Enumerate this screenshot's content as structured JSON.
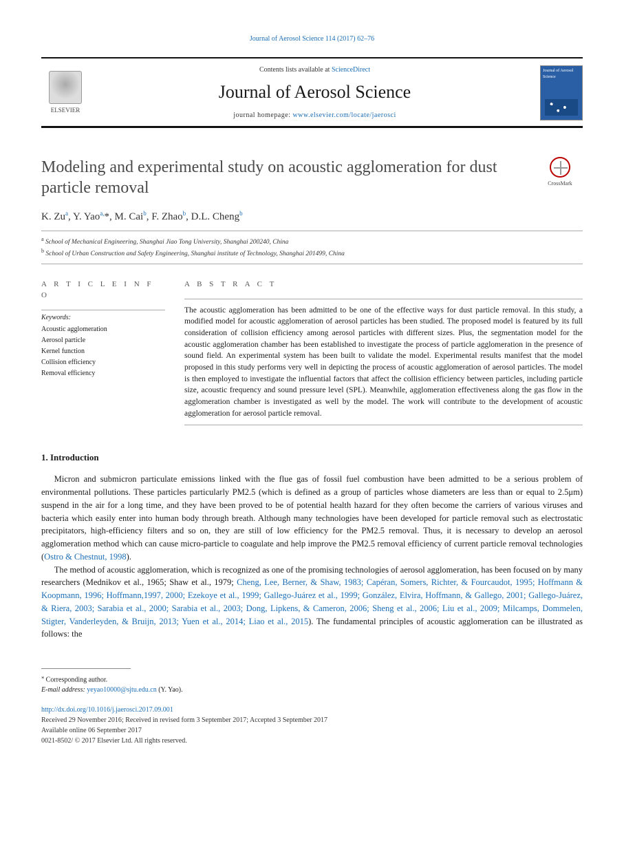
{
  "citation": "Journal of Aerosol Science 114 (2017) 62–76",
  "header": {
    "publisher": "ELSEVIER",
    "contents_prefix": "Contents lists available at ",
    "contents_link": "ScienceDirect",
    "journal_name": "Journal of Aerosol Science",
    "homepage_prefix": "journal homepage: ",
    "homepage_url": "www.elsevier.com/locate/jaerosci",
    "cover_text": "Journal of Aerosol Science"
  },
  "crossmark_label": "CrossMark",
  "title": "Modeling and experimental study on acoustic agglomeration for dust particle removal",
  "authors_html": "K. Zu<sup>a</sup>, Y. Yao<sup>a,</sup>*, M. Cai<sup>b</sup>, F. Zhao<sup>b</sup>, D.L. Cheng<sup>b</sup>",
  "affiliations": [
    {
      "mark": "a",
      "text": "School of Mechanical Engineering, Shanghai Jiao Tong University, Shanghai 200240, China"
    },
    {
      "mark": "b",
      "text": "School of Urban Construction and Safety Engineering, Shanghai institute of Technology, Shanghai 201499, China"
    }
  ],
  "article_info_label": "A R T I C L E  I N F O",
  "abstract_label": "A B S T R A C T",
  "keywords_head": "Keywords:",
  "keywords": [
    "Acoustic agglomeration",
    "Aerosol particle",
    "Kernel function",
    "Collision efficiency",
    "Removal efficiency"
  ],
  "abstract": "The acoustic agglomeration has been admitted to be one of the effective ways for dust particle removal. In this study, a modified model for acoustic agglomeration of aerosol particles has been studied. The proposed model is featured by its full consideration of collision efficiency among aerosol particles with different sizes. Plus, the segmentation model for the acoustic agglomeration chamber has been established to investigate the process of particle agglomeration in the presence of sound field. An experimental system has been built to validate the model. Experimental results manifest that the model proposed in this study performs very well in depicting the process of acoustic agglomeration of aerosol particles. The model is then employed to investigate the influential factors that affect the collision efficiency between particles, including particle size, acoustic frequency and sound pressure level (SPL). Meanwhile, agglomeration effectiveness along the gas flow in the agglomeration chamber is investigated as well by the model. The work will contribute to the development of acoustic agglomeration for aerosol particle removal.",
  "intro_head": "1. Introduction",
  "intro_p1_pre": "Micron and submicron particulate emissions linked with the flue gas of fossil fuel combustion have been admitted to be a serious problem of environmental pollutions. These particles particularly PM2.5 (which is defined as a group of particles whose diameters are less than or equal to 2.5μm) suspend in the air for a long time, and they have been proved to be of potential health hazard for they often become the carriers of various viruses and bacteria which easily enter into human body through breath. Although many technologies have been developed for particle removal such as electrostatic precipitators, high-efficiency filters and so on, they are still of low efficiency for the PM2.5 removal. Thus, it is necessary to develop an aerosol agglomeration method which can cause micro-particle to coagulate and help improve the PM2.5 removal efficiency of current particle removal technologies (",
  "intro_p1_ref": "Ostro & Chestnut, 1998",
  "intro_p1_post": ").",
  "intro_p2_pre": "The method of acoustic agglomeration, which is recognized as one of the promising technologies of aerosol agglomeration, has been focused on by many researchers (Mednikov et al., 1965; Shaw et al., 1979; ",
  "intro_p2_refs": "Cheng, Lee, Berner, & Shaw, 1983; Capéran, Somers, Richter, & Fourcaudot, 1995; Hoffmann & Koopmann, 1996; Hoffmann,1997, 2000; Ezekoye et al., 1999; Gallego-Juárez et al., 1999; González, Elvira, Hoffmann, & Gallego, 2001; Gallego-Juárez, & Riera, 2003; Sarabia et al., 2000; Sarabia et al., 2003; Dong, Lipkens, & Cameron, 2006; Sheng et al., 2006; Liu et al., 2009; Milcamps, Dommelen, Stigter, Vanderleyden, & Bruijn, 2013; Yuen et al., 2014; Liao et al., 2015",
  "intro_p2_post": "). The fundamental principles of acoustic agglomeration can be illustrated as follows: the",
  "footnotes": {
    "corr": "Corresponding author.",
    "email_label": "E-mail address: ",
    "email": "yeyao10000@sjtu.edu.cn",
    "email_owner": " (Y. Yao)."
  },
  "doi": {
    "url": "http://dx.doi.org/10.1016/j.jaerosci.2017.09.001",
    "history": "Received 29 November 2016; Received in revised form 3 September 2017; Accepted 3 September 2017",
    "online": "Available online 06 September 2017",
    "issn": "0021-8502/ © 2017 Elsevier Ltd. All rights reserved."
  },
  "colors": {
    "link": "#1a6db5",
    "rule": "#111111",
    "text": "#1a1a1a",
    "muted": "#4a4a4a"
  }
}
